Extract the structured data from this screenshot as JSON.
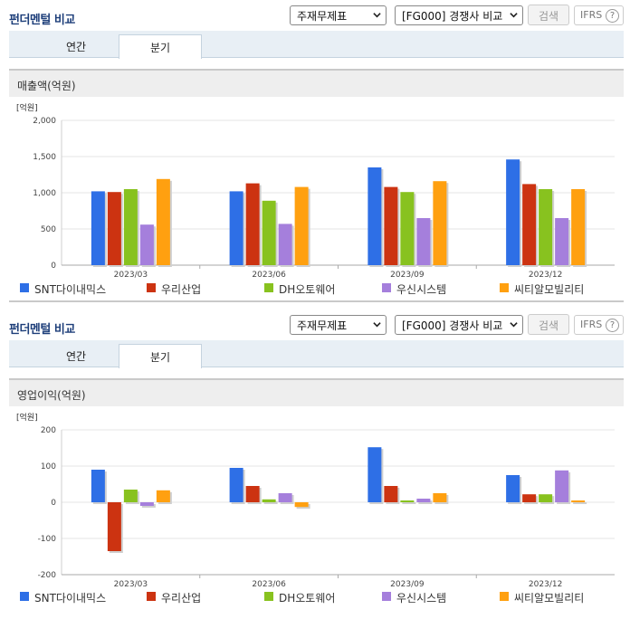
{
  "panels": [
    {
      "title": "펀더멘털 비교",
      "select_statement": "주재무제표",
      "select_compare": "[FG000] 경쟁사 비교",
      "search_label": "검색",
      "ifrs_label": "IFRS",
      "help_label": "?",
      "tabs": [
        "연간",
        "분기"
      ],
      "active_tab": "분기",
      "chart_title": "매출액(억원)"
    },
    {
      "title": "펀더멘털 비교",
      "select_statement": "주재무제표",
      "select_compare": "[FG000] 경쟁사 비교",
      "search_label": "검색",
      "ifrs_label": "IFRS",
      "help_label": "?",
      "tabs": [
        "연간",
        "분기"
      ],
      "active_tab": "분기",
      "chart_title": "영업이익(억원)"
    }
  ],
  "chart_data": [
    {
      "type": "bar",
      "unit_label": "[억원]",
      "categories": [
        "2023/03",
        "2023/06",
        "2023/09",
        "2023/12"
      ],
      "ylim": [
        0,
        2000
      ],
      "yticks": [
        "0",
        "500",
        "1,000",
        "1,500",
        "2,000"
      ],
      "ytick_values": [
        0,
        500,
        1000,
        1500,
        2000
      ],
      "series": [
        {
          "name": "SNT다이내믹스",
          "color": "#2e6fe6",
          "values": [
            1020,
            1020,
            1350,
            1460
          ]
        },
        {
          "name": "우리산업",
          "color": "#cc3311",
          "values": [
            1010,
            1130,
            1080,
            1120
          ]
        },
        {
          "name": "DH오토웨어",
          "color": "#88c21f",
          "values": [
            1050,
            890,
            1010,
            1050
          ]
        },
        {
          "name": "우신시스템",
          "color": "#a57fdc",
          "values": [
            560,
            570,
            650,
            650
          ]
        },
        {
          "name": "씨티알모빌리티",
          "color": "#ffa010",
          "values": [
            1190,
            1080,
            1160,
            1050
          ]
        }
      ]
    },
    {
      "type": "bar",
      "unit_label": "[억원]",
      "categories": [
        "2023/03",
        "2023/06",
        "2023/09",
        "2023/12"
      ],
      "ylim": [
        -200,
        200
      ],
      "yticks": [
        "-200",
        "-100",
        "0",
        "100",
        "200"
      ],
      "ytick_values": [
        -200,
        -100,
        0,
        100,
        200
      ],
      "series": [
        {
          "name": "SNT다이내믹스",
          "color": "#2e6fe6",
          "values": [
            90,
            95,
            152,
            75
          ]
        },
        {
          "name": "우리산업",
          "color": "#cc3311",
          "values": [
            -135,
            45,
            45,
            22
          ]
        },
        {
          "name": "DH오토웨어",
          "color": "#88c21f",
          "values": [
            35,
            8,
            5,
            22
          ]
        },
        {
          "name": "우신시스템",
          "color": "#a57fdc",
          "values": [
            -10,
            25,
            10,
            88
          ]
        },
        {
          "name": "씨티알모빌리티",
          "color": "#ffa010",
          "values": [
            33,
            -13,
            25,
            5
          ]
        }
      ]
    }
  ]
}
